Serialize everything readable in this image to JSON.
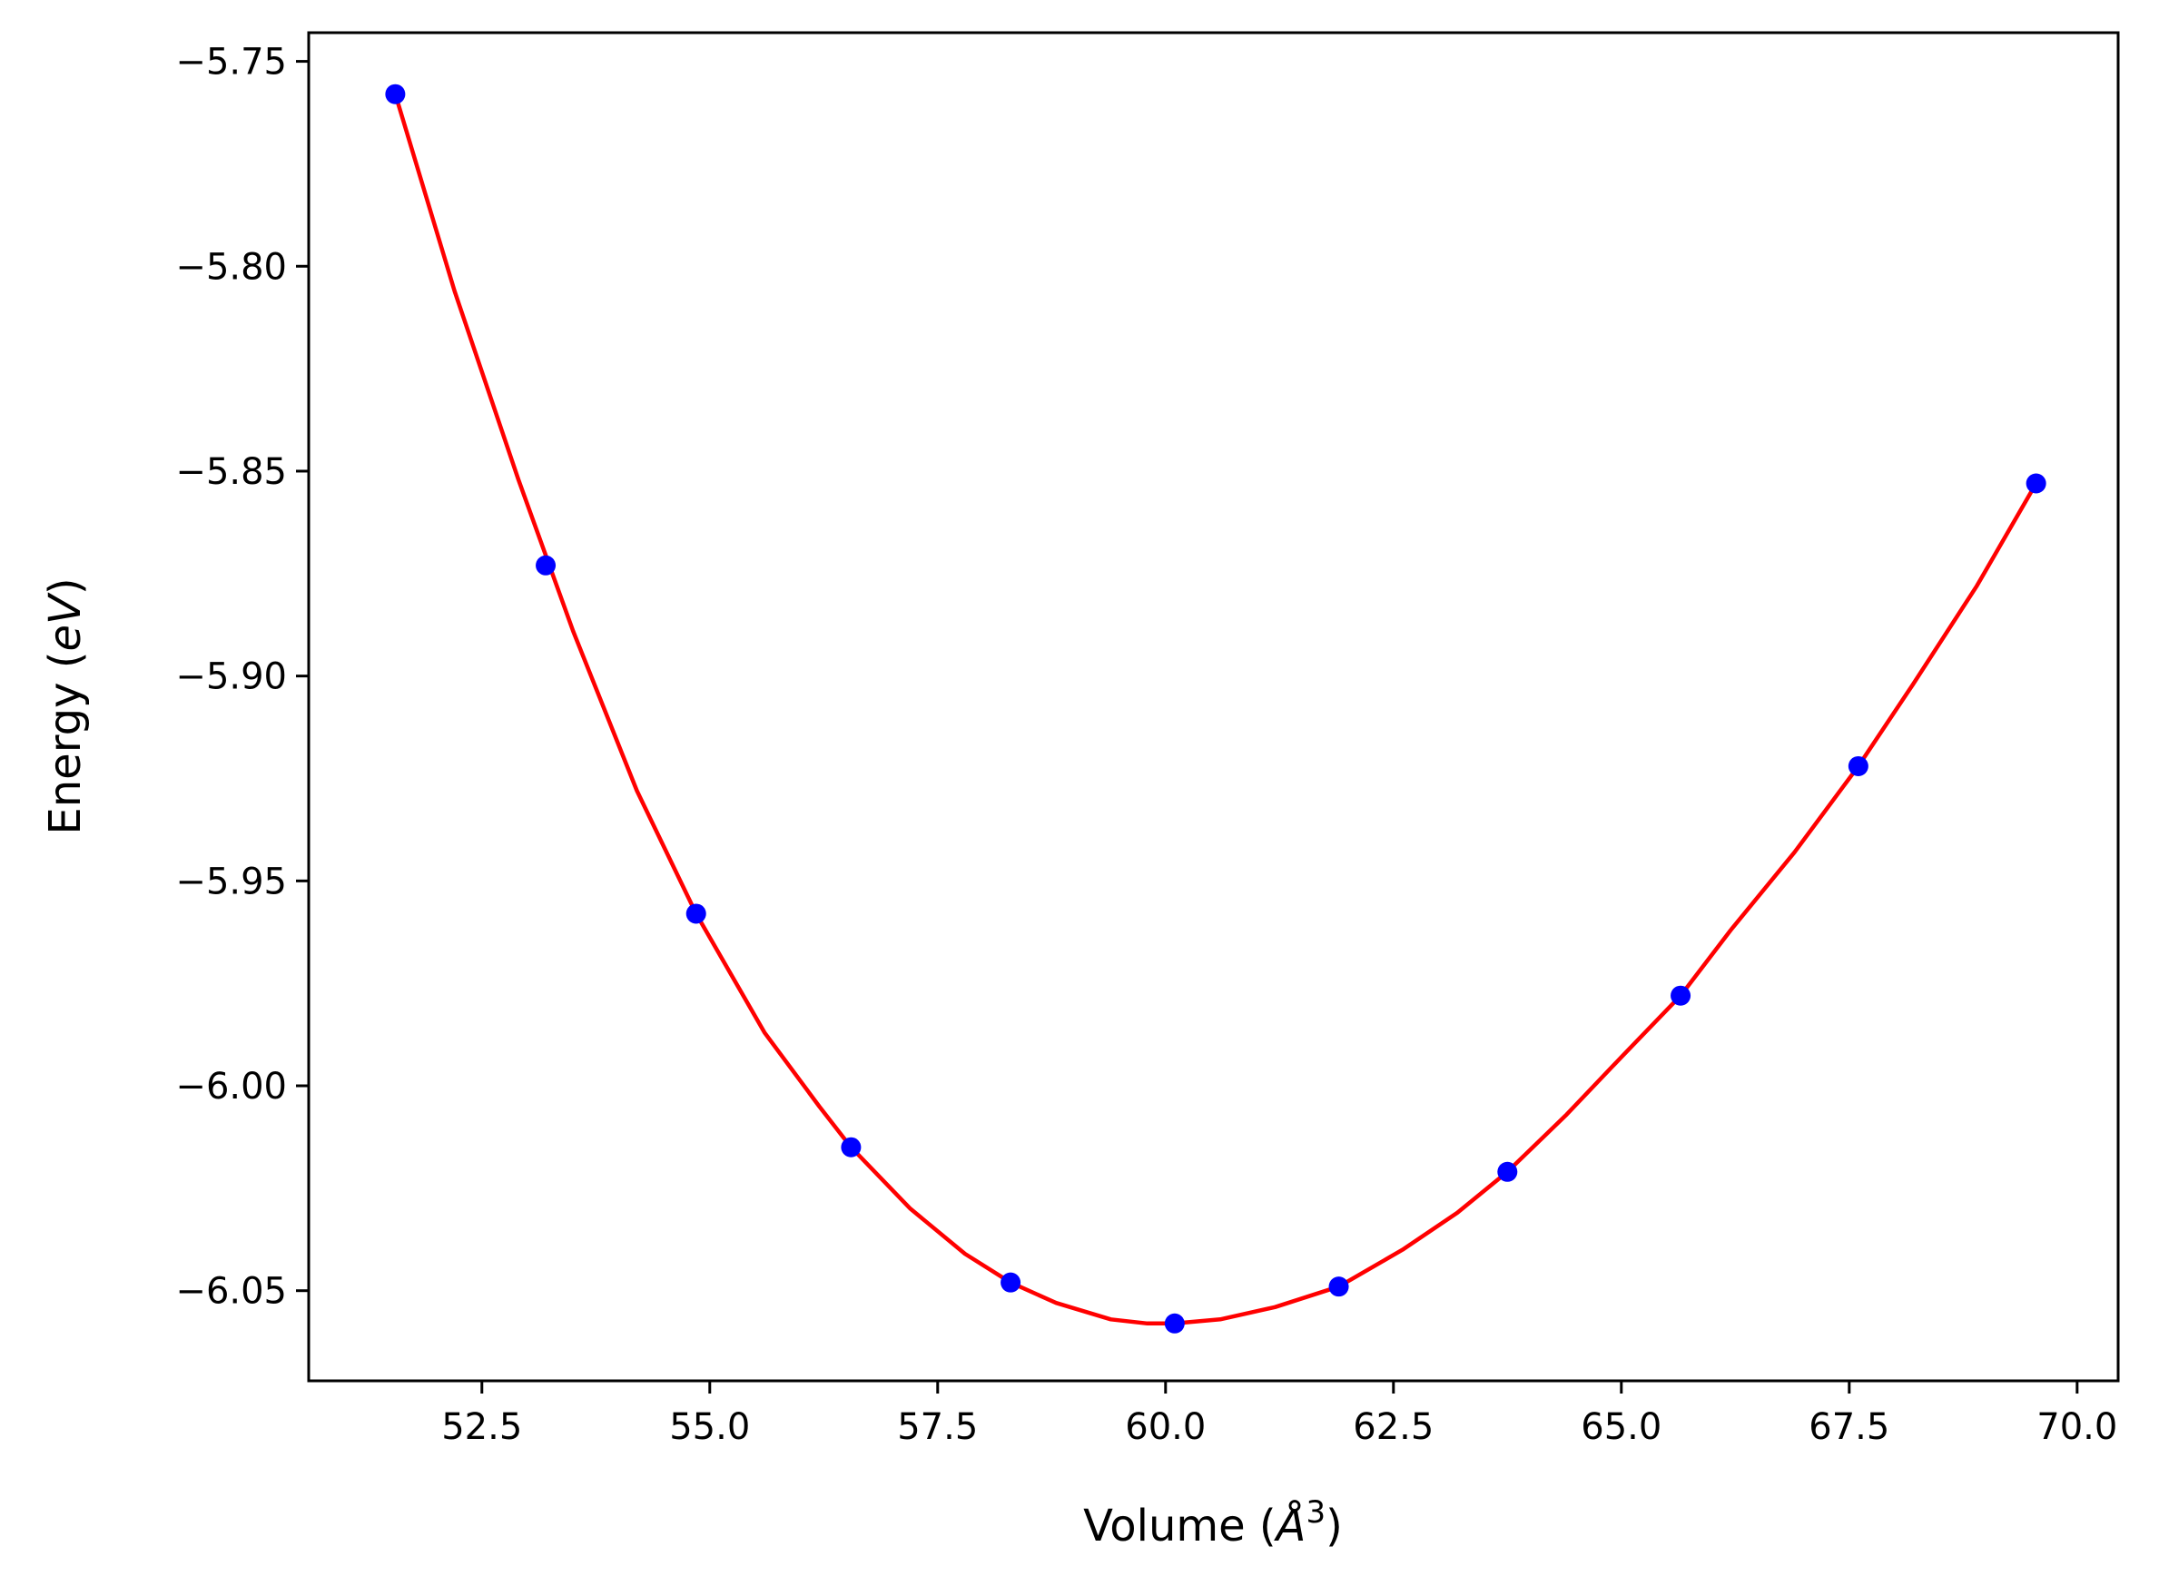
{
  "chart_data": {
    "type": "scatter",
    "xlabel": {
      "prefix": "Volume (",
      "symbol": "Å",
      "sup": "3",
      "suffix": ")"
    },
    "ylabel": {
      "prefix": "Energy (",
      "unit": "eV",
      "suffix": ")"
    },
    "xlim": [
      50.6,
      70.45
    ],
    "ylim": [
      -6.072,
      -5.743
    ],
    "xticks": [
      52.5,
      55.0,
      57.5,
      60.0,
      62.5,
      65.0,
      67.5,
      70.0
    ],
    "xtick_labels": [
      "52.5",
      "55.0",
      "57.5",
      "60.0",
      "62.5",
      "65.0",
      "67.5",
      "70.0"
    ],
    "yticks": [
      -5.75,
      -5.8,
      -5.85,
      -5.9,
      -5.95,
      -6.0,
      -6.05
    ],
    "ytick_labels": [
      "−5.75",
      "−5.80",
      "−5.85",
      "−5.90",
      "−5.95",
      "−6.00",
      "−6.05"
    ],
    "grid": false,
    "series": [
      {
        "kind": "points",
        "color": "#0000ff",
        "x": [
          51.55,
          53.2,
          54.85,
          56.55,
          58.3,
          60.1,
          61.9,
          63.75,
          65.65,
          67.6,
          69.55
        ],
        "y": [
          -5.758,
          -5.873,
          -5.958,
          -6.015,
          -6.048,
          -6.058,
          -6.049,
          -6.021,
          -5.978,
          -5.922,
          -5.853
        ]
      },
      {
        "kind": "fit-line",
        "color": "#ff0000",
        "x": [
          51.55,
          52.2,
          52.9,
          53.5,
          54.2,
          54.85,
          55.6,
          56.2,
          56.55,
          57.2,
          57.8,
          58.3,
          58.8,
          59.4,
          59.8,
          60.1,
          60.6,
          61.2,
          61.9,
          62.6,
          63.2,
          63.75,
          64.4,
          65.0,
          65.65,
          66.2,
          66.9,
          67.6,
          68.2,
          68.9,
          69.55
        ],
        "y": [
          -5.758,
          -5.806,
          -5.852,
          -5.889,
          -5.928,
          -5.958,
          -5.987,
          -6.005,
          -6.015,
          -6.03,
          -6.041,
          -6.048,
          -6.053,
          -6.057,
          -6.058,
          -6.058,
          -6.057,
          -6.054,
          -6.049,
          -6.04,
          -6.031,
          -6.021,
          -6.007,
          -5.993,
          -5.978,
          -5.962,
          -5.943,
          -5.922,
          -5.902,
          -5.878,
          -5.853
        ]
      }
    ]
  }
}
